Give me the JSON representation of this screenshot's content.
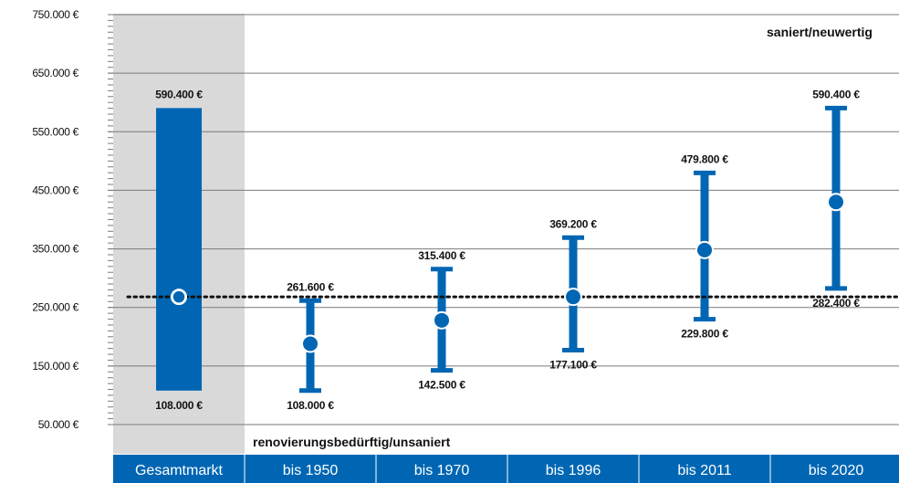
{
  "chart_data": {
    "type": "range",
    "y_axis": {
      "min": 50000,
      "max": 750000,
      "tick_labels": [
        "750.000 €",
        "650.000 €",
        "550.000 €",
        "450.000 €",
        "350.000 €",
        "250.000 €",
        "150.000 €",
        "50.000 €"
      ],
      "tick_values": [
        750000,
        650000,
        550000,
        450000,
        350000,
        250000,
        150000,
        50000
      ]
    },
    "categories": [
      "Gesamtmarkt",
      "bis 1950",
      "bis 1970",
      "bis 1996",
      "bis 2011",
      "bis 2020"
    ],
    "ranges": [
      {
        "category": "Gesamtmarkt",
        "low": 108000,
        "high": 590400,
        "mid": 268000,
        "low_label": "108.000 €",
        "high_label": "590.400 €",
        "style": "box",
        "mid_marker": "hollow"
      },
      {
        "category": "bis 1950",
        "low": 108000,
        "high": 261600,
        "mid": 188000,
        "low_label": "108.000 €",
        "high_label": "261.600 €",
        "style": "errorbar",
        "mid_marker": "filled"
      },
      {
        "category": "bis 1970",
        "low": 142500,
        "high": 315400,
        "mid": 228000,
        "low_label": "142.500 €",
        "high_label": "315.400 €",
        "style": "errorbar",
        "mid_marker": "filled"
      },
      {
        "category": "bis 1996",
        "low": 177100,
        "high": 369200,
        "mid": 268000,
        "low_label": "177.100 €",
        "high_label": "369.200 €",
        "style": "errorbar",
        "mid_marker": "filled"
      },
      {
        "category": "bis 2011",
        "low": 229800,
        "high": 479800,
        "mid": 348000,
        "low_label": "229.800 €",
        "high_label": "479.800 €",
        "style": "errorbar",
        "mid_marker": "filled"
      },
      {
        "category": "bis 2020",
        "low": 282400,
        "high": 590400,
        "mid": 430000,
        "low_label": "282.400 €",
        "high_label": "590.400 €",
        "style": "errorbar",
        "mid_marker": "filled"
      }
    ],
    "reference_line": {
      "value": 268000,
      "style": "dotted"
    },
    "annotations": {
      "top": "saniert/neuwertig",
      "bottom": "renovierungsbedürftig/unsaniert"
    },
    "grid": true,
    "highlighted_category": "Gesamtmarkt"
  },
  "colors": {
    "accent": "#0066b3",
    "highlight_bg": "#d9d9d9",
    "grid": "#7a7a7a",
    "text": "#111111",
    "category_bar_text": "#ffffff"
  }
}
